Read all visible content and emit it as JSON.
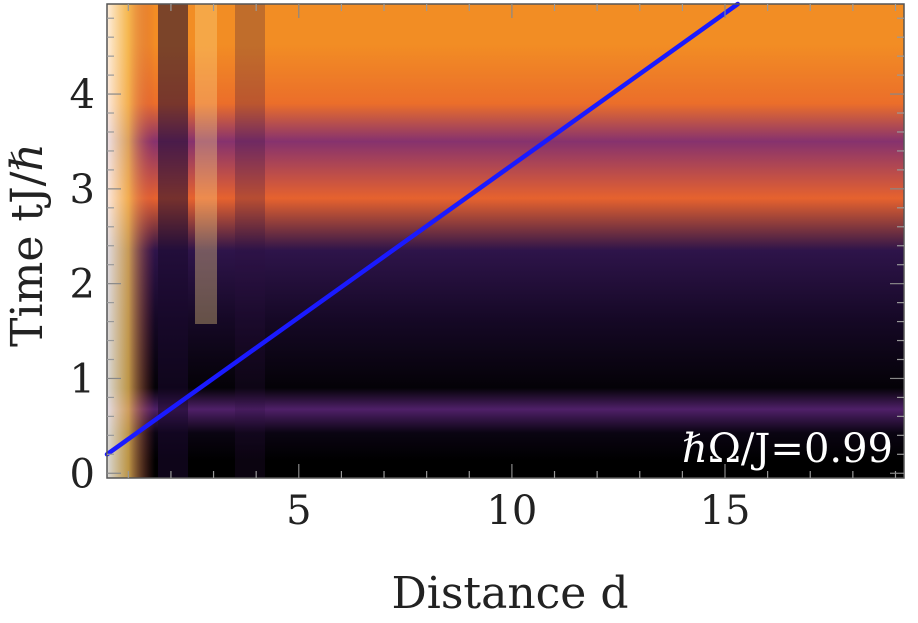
{
  "chart_data": {
    "type": "heatmap",
    "title": "",
    "xlabel": "Distance d",
    "ylabel": "Time tJ/ℏ",
    "xlim": [
      0.5,
      19.2
    ],
    "ylim": [
      -0.05,
      4.95
    ],
    "x_ticks": [
      5,
      10,
      15
    ],
    "y_ticks": [
      0,
      1,
      2,
      3,
      4
    ],
    "annotation": "ℏΩ/J=0.99",
    "colormap": [
      "#000000",
      "#1a0a2e",
      "#3c1a5c",
      "#6c2a7a",
      "#b43f5a",
      "#e8632c",
      "#f59a22",
      "#fbbe3a",
      "#ffffff"
    ],
    "time_bands": [
      {
        "from": -0.05,
        "to": 0.3,
        "level": 0.0
      },
      {
        "from": 0.3,
        "to": 0.55,
        "level": 0.05
      },
      {
        "from": 0.55,
        "to": 0.8,
        "level": 0.3
      },
      {
        "from": 0.8,
        "to": 1.0,
        "level": 0.02
      },
      {
        "from": 1.0,
        "to": 2.2,
        "level": 0.1
      },
      {
        "from": 2.2,
        "to": 2.5,
        "level": 0.2
      },
      {
        "from": 2.5,
        "to": 3.3,
        "level": 0.62
      },
      {
        "from": 3.3,
        "to": 3.7,
        "level": 0.42
      },
      {
        "from": 3.7,
        "to": 4.1,
        "level": 0.65
      },
      {
        "from": 4.1,
        "to": 4.95,
        "level": 0.72
      }
    ],
    "light_cone": {
      "color": "#1a1aff",
      "x": [
        0.5,
        15.3
      ],
      "y": [
        0.2,
        4.95
      ]
    }
  }
}
